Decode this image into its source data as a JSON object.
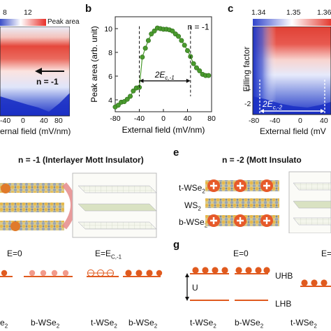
{
  "panel_a": {
    "colorbar": {
      "ticks": [
        "8",
        "12"
      ],
      "label": "Peak area"
    },
    "x_ticks": [
      "-40",
      "0",
      "40",
      "80"
    ],
    "x_label": "ernal field (mV/nm)",
    "annotation": "n = -1"
  },
  "panel_b": {
    "letter": "b",
    "annotation": "n = -1",
    "gap_label": "2E",
    "gap_sub": "c,-1"
  },
  "panel_c": {
    "letter": "c",
    "colorbar": {
      "ticks": [
        "1.34",
        "1.35",
        "1.36"
      ]
    },
    "y_label": "Filling factor",
    "y_ticks": [
      "-1",
      "-2"
    ],
    "x_ticks": [
      "-80",
      "-40",
      "0",
      "40"
    ],
    "x_label": "External field (mV",
    "gap_label": "2E",
    "gap_sub": "c,-2"
  },
  "panel_d": {
    "title": "n = -1 (Interlayer Mott Insulator)"
  },
  "panel_e": {
    "letter": "e",
    "title": "n = -2 (Mott Insulato",
    "layers": [
      "t-WSe",
      "WS",
      "b-WSe"
    ],
    "layer_subs": [
      "2",
      "2",
      "2"
    ]
  },
  "panel_f": {
    "label_e0": "E=0",
    "label_ec": "E=E",
    "label_ec_sub": "C,-1",
    "bottom_labels": [
      "e",
      "b-WSe",
      "t-WSe",
      "b-WSe"
    ],
    "bottom_subs": [
      "2",
      "2",
      "2",
      "2"
    ]
  },
  "panel_g": {
    "letter": "g",
    "label_e0": "E=0",
    "label_e_right": "E=",
    "u_label": "U",
    "uhb": "UHB",
    "lhb": "LHB",
    "bottom_labels": [
      "t-WSe",
      "b-WSe",
      "t-WSe"
    ],
    "bottom_subs": [
      "2",
      "2",
      "2"
    ]
  },
  "chart_data": {
    "type": "scatter",
    "xlabel": "External field (mV/nm)",
    "ylabel": "Peak area (arb. unit)",
    "xlim": [
      -80,
      80
    ],
    "ylim": [
      3,
      11
    ],
    "x_ticks": [
      -80,
      -40,
      0,
      40,
      80
    ],
    "y_ticks": [
      4,
      6,
      8,
      10
    ],
    "x": [
      -80,
      -75,
      -70,
      -65,
      -60,
      -55,
      -50,
      -45,
      -40,
      -35,
      -30,
      -25,
      -20,
      -15,
      -10,
      -5,
      0,
      5,
      10,
      15,
      20,
      25,
      30,
      35,
      40,
      45,
      50,
      55,
      60,
      65,
      70,
      75
    ],
    "values": [
      3.4,
      3.55,
      3.8,
      3.85,
      4.05,
      4.3,
      4.75,
      5.0,
      5.05,
      7.6,
      8.35,
      9.0,
      9.55,
      9.8,
      10.05,
      10.0,
      9.95,
      9.95,
      9.9,
      9.8,
      9.55,
      9.35,
      9.0,
      8.6,
      8.15,
      7.65,
      7.05,
      6.7,
      6.45,
      6.15,
      6.05,
      6.05
    ],
    "annotation": "n = -1",
    "color": "#4a9a2e"
  }
}
